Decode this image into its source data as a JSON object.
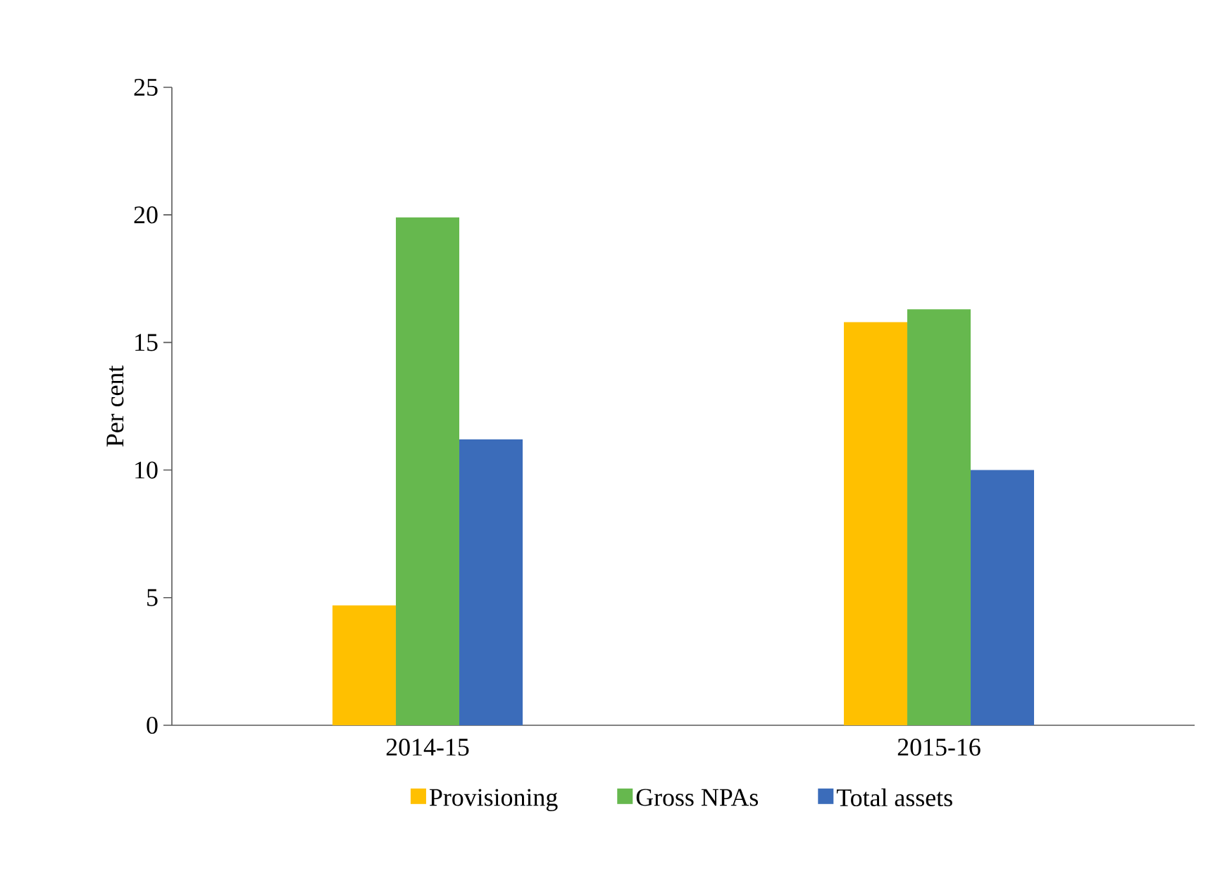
{
  "chart_data": {
    "type": "bar",
    "ylabel": "Per cent",
    "categories": [
      "2014-15",
      "2015-16"
    ],
    "series": [
      {
        "name": "Provisioning",
        "color": "#ffc000",
        "values": [
          4.7,
          15.8
        ]
      },
      {
        "name": "Gross NPAs",
        "color": "#66b84e",
        "values": [
          19.9,
          16.3
        ]
      },
      {
        "name": "Total assets",
        "color": "#3b6cba",
        "values": [
          11.2,
          10.0
        ]
      }
    ],
    "ylim": [
      0,
      25
    ],
    "yticks": [
      0,
      5,
      10,
      15,
      20,
      25
    ],
    "legend": "bottom",
    "grid": false
  }
}
